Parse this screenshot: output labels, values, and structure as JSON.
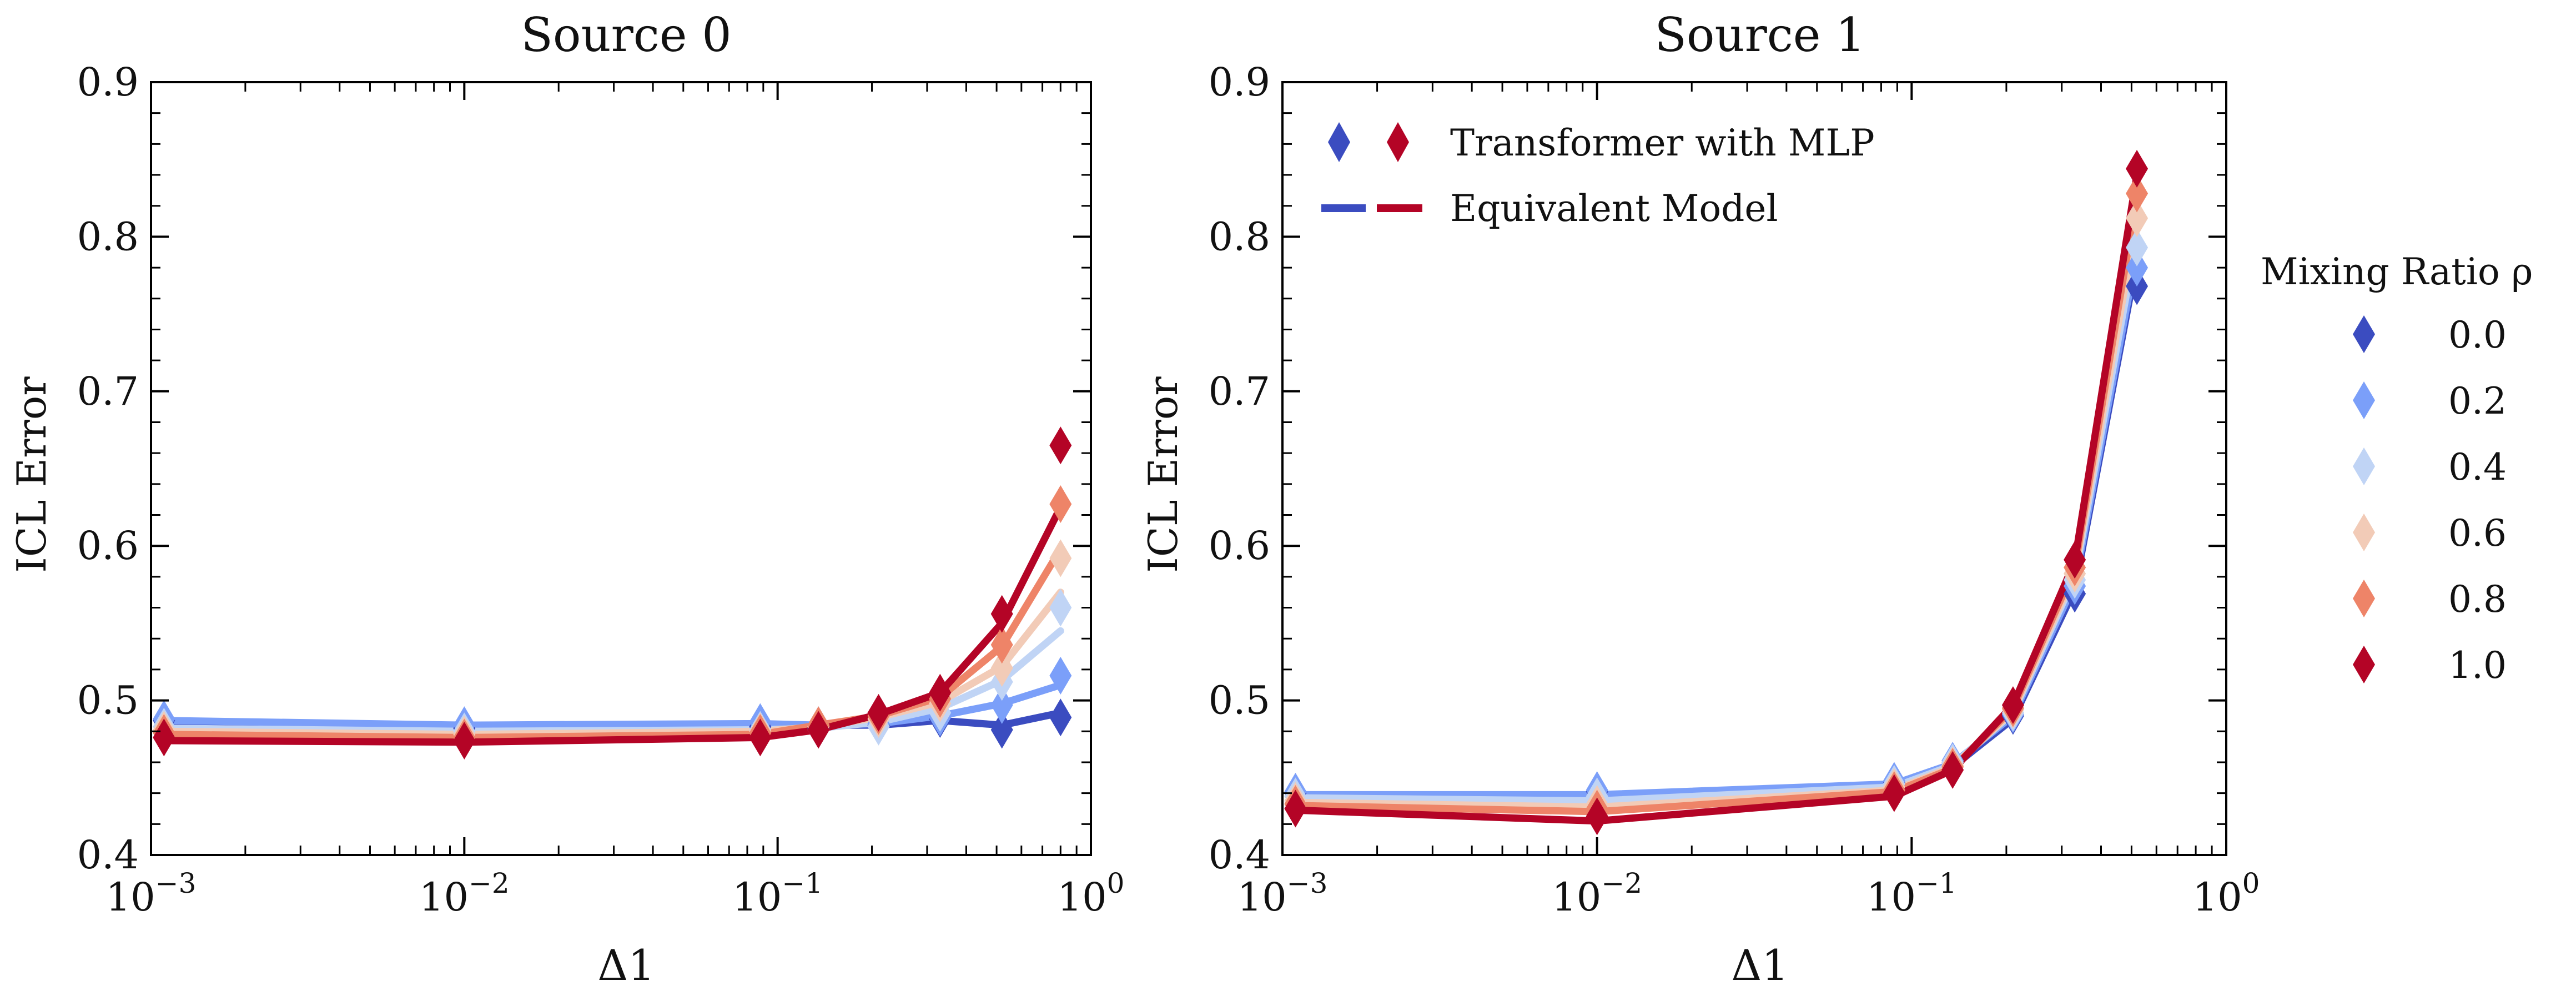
{
  "figure": {
    "legend_marker_label": "Transformer with MLP",
    "legend_line_label": "Equivalent Model",
    "colorbar_title": "Mixing Ratio ρ",
    "ratio_labels": [
      "0.0",
      "0.2",
      "0.4",
      "0.6",
      "0.8",
      "1.0"
    ],
    "ratio_colors": [
      "#3b4cc0",
      "#7b9ff9",
      "#c0d4f5",
      "#f2cbb7",
      "#ee8468",
      "#b40426"
    ]
  },
  "chart_data": [
    {
      "type": "line",
      "title": "Source 0",
      "xlabel": "Δ1",
      "ylabel": "ICL Error",
      "xscale": "log",
      "xlim": [
        0.001,
        1
      ],
      "ylim": [
        0.4,
        0.9
      ],
      "xticks": [
        0.001,
        0.01,
        0.1,
        1
      ],
      "xtick_labels": [
        "10−3",
        "10−2",
        "10−1",
        "100"
      ],
      "yticks": [
        0.4,
        0.5,
        0.6,
        0.7,
        0.8,
        0.9
      ],
      "ytick_labels": [
        "0.4",
        "0.5",
        "0.6",
        "0.7",
        "0.8",
        "0.9"
      ],
      "x": [
        0.0011,
        0.01,
        0.088,
        0.135,
        0.21,
        0.33,
        0.52,
        0.8
      ],
      "series": [
        {
          "name": "0.0",
          "markers": [
            0.487,
            0.482,
            0.483,
            0.482,
            0.484,
            0.488,
            0.481,
            0.489
          ],
          "model": [
            0.486,
            0.483,
            0.484,
            0.484,
            0.484,
            0.487,
            0.484,
            0.492
          ]
        },
        {
          "name": "0.2",
          "markers": [
            0.488,
            0.484,
            0.486,
            0.484,
            0.485,
            0.489,
            0.497,
            0.516
          ],
          "model": [
            0.487,
            0.484,
            0.485,
            0.484,
            0.485,
            0.49,
            0.498,
            0.51
          ]
        },
        {
          "name": "0.4",
          "markers": [
            0.483,
            0.48,
            0.481,
            0.481,
            0.483,
            0.492,
            0.512,
            0.56
          ],
          "model": [
            0.482,
            0.48,
            0.481,
            0.482,
            0.486,
            0.495,
            0.513,
            0.545
          ]
        },
        {
          "name": "0.6",
          "markers": [
            0.481,
            0.478,
            0.48,
            0.483,
            0.488,
            0.498,
            0.521,
            0.592
          ],
          "model": [
            0.48,
            0.478,
            0.48,
            0.483,
            0.489,
            0.499,
            0.522,
            0.57
          ]
        },
        {
          "name": "0.8",
          "markers": [
            0.479,
            0.476,
            0.479,
            0.484,
            0.49,
            0.501,
            0.536,
            0.627
          ],
          "model": [
            0.478,
            0.476,
            0.478,
            0.484,
            0.49,
            0.502,
            0.535,
            0.598
          ]
        },
        {
          "name": "1.0",
          "markers": [
            0.476,
            0.474,
            0.476,
            0.481,
            0.492,
            0.505,
            0.556,
            0.665
          ],
          "model": [
            0.474,
            0.473,
            0.476,
            0.481,
            0.491,
            0.505,
            0.55,
            0.625
          ]
        }
      ]
    },
    {
      "type": "line",
      "title": "Source 1",
      "xlabel": "Δ1",
      "ylabel": "ICL Error",
      "xscale": "log",
      "xlim": [
        0.001,
        1
      ],
      "ylim": [
        0.4,
        0.9
      ],
      "xticks": [
        0.001,
        0.01,
        0.1,
        1
      ],
      "xtick_labels": [
        "10−3",
        "10−2",
        "10−1",
        "100"
      ],
      "yticks": [
        0.4,
        0.5,
        0.6,
        0.7,
        0.8,
        0.9
      ],
      "ytick_labels": [
        "0.4",
        "0.5",
        "0.6",
        "0.7",
        "0.8",
        "0.9"
      ],
      "x": [
        0.0011,
        0.01,
        0.088,
        0.135,
        0.21,
        0.33,
        0.52
      ],
      "series": [
        {
          "name": "0.0",
          "markers": [
            0.44,
            0.441,
            0.447,
            0.46,
            0.49,
            0.569,
            0.768
          ],
          "model": [
            0.436,
            0.436,
            0.444,
            0.457,
            0.488,
            0.572,
            0.785
          ]
        },
        {
          "name": "0.2",
          "markers": [
            0.441,
            0.442,
            0.448,
            0.461,
            0.491,
            0.574,
            0.78
          ],
          "model": [
            0.439,
            0.439,
            0.446,
            0.459,
            0.49,
            0.576,
            0.79
          ]
        },
        {
          "name": "0.4",
          "markers": [
            0.438,
            0.438,
            0.446,
            0.46,
            0.492,
            0.578,
            0.793
          ],
          "model": [
            0.437,
            0.435,
            0.444,
            0.458,
            0.492,
            0.58,
            0.8
          ]
        },
        {
          "name": "0.6",
          "markers": [
            0.435,
            0.433,
            0.444,
            0.458,
            0.494,
            0.582,
            0.812
          ],
          "model": [
            0.434,
            0.431,
            0.442,
            0.457,
            0.493,
            0.583,
            0.812
          ]
        },
        {
          "name": "0.8",
          "markers": [
            0.433,
            0.43,
            0.442,
            0.457,
            0.495,
            0.586,
            0.828
          ],
          "model": [
            0.432,
            0.428,
            0.441,
            0.456,
            0.495,
            0.586,
            0.826
          ]
        },
        {
          "name": "1.0",
          "markers": [
            0.43,
            0.425,
            0.44,
            0.455,
            0.497,
            0.591,
            0.844
          ],
          "model": [
            0.429,
            0.422,
            0.438,
            0.455,
            0.497,
            0.59,
            0.84
          ]
        }
      ]
    }
  ]
}
